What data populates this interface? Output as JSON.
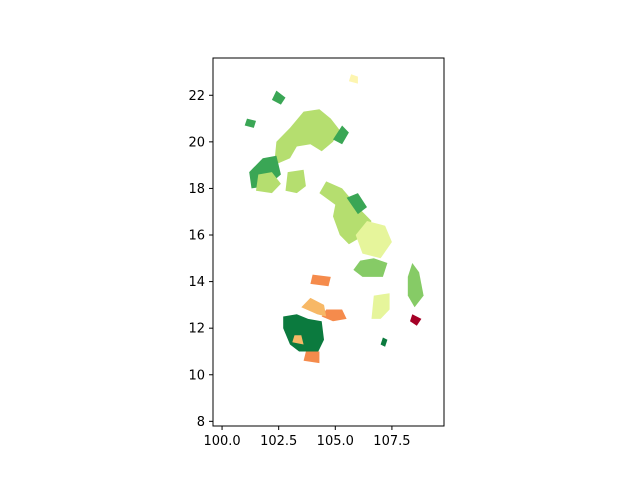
{
  "chart_data": {
    "type": "map",
    "title": "",
    "xlabel": "",
    "ylabel": "",
    "xlim": [
      99.6,
      109.8
    ],
    "ylim": [
      7.8,
      23.6
    ],
    "xticks": [
      "100.0",
      "102.5",
      "105.0",
      "107.5"
    ],
    "xtick_values": [
      100.0,
      102.5,
      105.0,
      107.5
    ],
    "yticks": [
      "8",
      "10",
      "12",
      "14",
      "16",
      "18",
      "20",
      "22"
    ],
    "ytick_values": [
      8,
      10,
      12,
      14,
      16,
      18,
      20,
      22
    ],
    "grid": false,
    "colormap": "RdYlGn",
    "colors": {
      "dark_green": "#0b7a3e",
      "green": "#3aa655",
      "mid_green": "#86cb66",
      "light_green": "#b5de6f",
      "pale_yellow_green": "#e6f59b",
      "pale_yellow": "#fdf5b0",
      "light_orange": "#f7b866",
      "orange": "#f58b4c",
      "red": "#e0463a",
      "dark_red": "#a50026"
    },
    "regions": [
      {
        "id": "north-big",
        "color": "light_green",
        "outline": [
          [
            102.3,
            19.0
          ],
          [
            102.4,
            20.0
          ],
          [
            103.0,
            20.6
          ],
          [
            103.6,
            21.3
          ],
          [
            104.3,
            21.4
          ],
          [
            104.8,
            21.0
          ],
          [
            105.2,
            20.5
          ],
          [
            104.9,
            20.0
          ],
          [
            104.4,
            19.6
          ],
          [
            103.9,
            19.9
          ],
          [
            103.3,
            19.8
          ],
          [
            103.0,
            19.3
          ]
        ]
      },
      {
        "id": "north-west",
        "color": "green",
        "outline": [
          [
            101.3,
            18.0
          ],
          [
            101.2,
            18.7
          ],
          [
            101.8,
            19.3
          ],
          [
            102.4,
            19.4
          ],
          [
            102.6,
            18.6
          ],
          [
            102.0,
            18.1
          ]
        ]
      },
      {
        "id": "north-west-2",
        "color": "light_green",
        "outline": [
          [
            101.5,
            17.9
          ],
          [
            101.6,
            18.6
          ],
          [
            102.2,
            18.7
          ],
          [
            102.6,
            18.2
          ],
          [
            102.2,
            17.8
          ]
        ]
      },
      {
        "id": "north-mid",
        "color": "light_green",
        "outline": [
          [
            102.8,
            17.9
          ],
          [
            102.9,
            18.7
          ],
          [
            103.6,
            18.8
          ],
          [
            103.7,
            18.1
          ],
          [
            103.3,
            17.8
          ]
        ]
      },
      {
        "id": "north-east-strip",
        "color": "green",
        "outline": [
          [
            104.9,
            20.1
          ],
          [
            105.3,
            20.7
          ],
          [
            105.6,
            20.4
          ],
          [
            105.3,
            19.9
          ]
        ]
      },
      {
        "id": "north-small-1",
        "color": "green",
        "outline": [
          [
            101.0,
            20.7
          ],
          [
            101.1,
            21.0
          ],
          [
            101.5,
            20.9
          ],
          [
            101.4,
            20.6
          ]
        ]
      },
      {
        "id": "north-small-2",
        "color": "green",
        "outline": [
          [
            102.2,
            21.8
          ],
          [
            102.4,
            22.2
          ],
          [
            102.8,
            21.9
          ],
          [
            102.6,
            21.6
          ]
        ]
      },
      {
        "id": "central-green",
        "color": "light_green",
        "outline": [
          [
            104.3,
            17.8
          ],
          [
            104.6,
            18.3
          ],
          [
            105.3,
            18.0
          ],
          [
            106.0,
            17.2
          ],
          [
            106.6,
            16.6
          ],
          [
            106.3,
            16.0
          ],
          [
            105.6,
            15.6
          ],
          [
            105.2,
            16.0
          ],
          [
            104.9,
            16.8
          ],
          [
            105.0,
            17.3
          ]
        ]
      },
      {
        "id": "central-green-2",
        "color": "green",
        "outline": [
          [
            105.5,
            17.6
          ],
          [
            106.0,
            17.8
          ],
          [
            106.4,
            17.2
          ],
          [
            106.0,
            16.9
          ]
        ]
      },
      {
        "id": "central-yellow",
        "color": "pale_yellow_green",
        "outline": [
          [
            105.9,
            16.0
          ],
          [
            106.4,
            16.6
          ],
          [
            107.2,
            16.4
          ],
          [
            107.5,
            15.7
          ],
          [
            107.0,
            15.0
          ],
          [
            106.2,
            15.2
          ]
        ]
      },
      {
        "id": "central-south-green",
        "color": "mid_green",
        "outline": [
          [
            105.8,
            14.5
          ],
          [
            106.2,
            14.2
          ],
          [
            107.1,
            14.2
          ],
          [
            107.3,
            14.8
          ],
          [
            106.7,
            15.0
          ],
          [
            106.1,
            14.9
          ]
        ]
      },
      {
        "id": "east-green",
        "color": "mid_green",
        "outline": [
          [
            108.2,
            14.2
          ],
          [
            108.4,
            14.8
          ],
          [
            108.7,
            14.4
          ],
          [
            108.9,
            13.4
          ],
          [
            108.5,
            12.9
          ],
          [
            108.2,
            13.4
          ]
        ]
      },
      {
        "id": "east-yellow",
        "color": "pale_yellow_green",
        "outline": [
          [
            106.6,
            12.4
          ],
          [
            106.7,
            13.4
          ],
          [
            107.4,
            13.5
          ],
          [
            107.4,
            12.8
          ],
          [
            107.0,
            12.4
          ]
        ]
      },
      {
        "id": "south-dark-green",
        "color": "dark_green",
        "outline": [
          [
            102.7,
            12.0
          ],
          [
            102.7,
            12.5
          ],
          [
            103.3,
            12.6
          ],
          [
            103.8,
            12.4
          ],
          [
            104.4,
            12.3
          ],
          [
            104.5,
            11.5
          ],
          [
            104.2,
            10.9
          ],
          [
            103.7,
            11.0
          ],
          [
            103.4,
            11.0
          ],
          [
            103.0,
            11.3
          ]
        ]
      },
      {
        "id": "south-orange-1",
        "color": "orange",
        "outline": [
          [
            103.9,
            13.9
          ],
          [
            104.0,
            14.3
          ],
          [
            104.8,
            14.2
          ],
          [
            104.7,
            13.8
          ]
        ]
      },
      {
        "id": "south-orange-2",
        "color": "orange",
        "outline": [
          [
            104.4,
            12.5
          ],
          [
            104.6,
            12.8
          ],
          [
            105.3,
            12.8
          ],
          [
            105.5,
            12.4
          ],
          [
            104.9,
            12.3
          ]
        ]
      },
      {
        "id": "south-orange-3",
        "color": "orange",
        "outline": [
          [
            103.6,
            10.6
          ],
          [
            103.7,
            11.0
          ],
          [
            104.3,
            11.0
          ],
          [
            104.3,
            10.5
          ]
        ]
      },
      {
        "id": "south-light-orange",
        "color": "light_orange",
        "outline": [
          [
            103.5,
            12.9
          ],
          [
            103.9,
            13.3
          ],
          [
            104.5,
            13.0
          ],
          [
            104.6,
            12.5
          ],
          [
            104.2,
            12.6
          ]
        ]
      },
      {
        "id": "south-light-orange-2",
        "color": "light_orange",
        "outline": [
          [
            103.1,
            11.4
          ],
          [
            103.2,
            11.7
          ],
          [
            103.5,
            11.7
          ],
          [
            103.6,
            11.3
          ]
        ]
      },
      {
        "id": "east-red",
        "color": "dark_red",
        "outline": [
          [
            108.3,
            12.3
          ],
          [
            108.4,
            12.6
          ],
          [
            108.8,
            12.4
          ],
          [
            108.6,
            12.1
          ]
        ]
      },
      {
        "id": "north-yellow",
        "color": "pale_yellow",
        "outline": [
          [
            105.6,
            22.6
          ],
          [
            105.7,
            22.9
          ],
          [
            106.0,
            22.8
          ],
          [
            106.0,
            22.5
          ]
        ]
      },
      {
        "id": "east-small-green",
        "color": "dark_green",
        "outline": [
          [
            107.0,
            11.3
          ],
          [
            107.1,
            11.6
          ],
          [
            107.3,
            11.5
          ],
          [
            107.2,
            11.2
          ]
        ]
      }
    ]
  }
}
